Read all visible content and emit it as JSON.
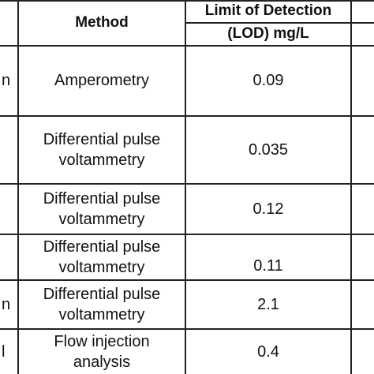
{
  "header": {
    "method": "Method",
    "lod_line1": "Limit of Detection",
    "lod_line2": "(LOD) mg/L"
  },
  "rows": [
    {
      "left_fragment": "n",
      "method": "Amperometry",
      "lod": "0.09"
    },
    {
      "left_fragment": "",
      "method_line1": "Differential pulse",
      "method_line2": "voltammetry",
      "lod": "0.035"
    },
    {
      "left_fragment": "",
      "method_line1": "Differential pulse",
      "method_line2": "voltammetry",
      "lod": "0.12"
    },
    {
      "left_fragment": "",
      "method_line1": "Differential pulse",
      "method_line2": "voltammetry",
      "lod": "0.11"
    },
    {
      "left_fragment": "n",
      "method_line1": "Differential pulse",
      "method_line2": "voltammetry",
      "lod": "2.1"
    },
    {
      "left_fragment": "l",
      "method_line1": "Flow injection",
      "method_line2": "analysis",
      "lod": "0.4"
    }
  ]
}
